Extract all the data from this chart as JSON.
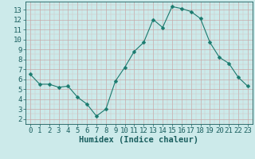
{
  "x": [
    0,
    1,
    2,
    3,
    4,
    5,
    6,
    7,
    8,
    9,
    10,
    11,
    12,
    13,
    14,
    15,
    16,
    17,
    18,
    19,
    20,
    21,
    22,
    23
  ],
  "y": [
    6.5,
    5.5,
    5.5,
    5.2,
    5.3,
    4.2,
    3.5,
    2.3,
    3.0,
    5.8,
    7.2,
    8.8,
    9.7,
    12.0,
    11.2,
    13.3,
    13.1,
    12.8,
    12.1,
    9.7,
    8.2,
    7.6,
    6.2,
    5.3
  ],
  "line_color": "#1a7a6e",
  "marker": "D",
  "marker_size": 2.5,
  "bg_color": "#cceaea",
  "grid_major_color": "#b0cccc",
  "grid_minor_color": "#c2dcdc",
  "xlabel": "Humidex (Indice chaleur)",
  "xlim": [
    -0.5,
    23.5
  ],
  "ylim": [
    1.5,
    13.8
  ],
  "yticks": [
    2,
    3,
    4,
    5,
    6,
    7,
    8,
    9,
    10,
    11,
    12,
    13
  ],
  "xticks": [
    0,
    1,
    2,
    3,
    4,
    5,
    6,
    7,
    8,
    9,
    10,
    11,
    12,
    13,
    14,
    15,
    16,
    17,
    18,
    19,
    20,
    21,
    22,
    23
  ],
  "tick_label_color": "#1a5f5f",
  "font_size": 6.5,
  "xlabel_fontsize": 7.5
}
